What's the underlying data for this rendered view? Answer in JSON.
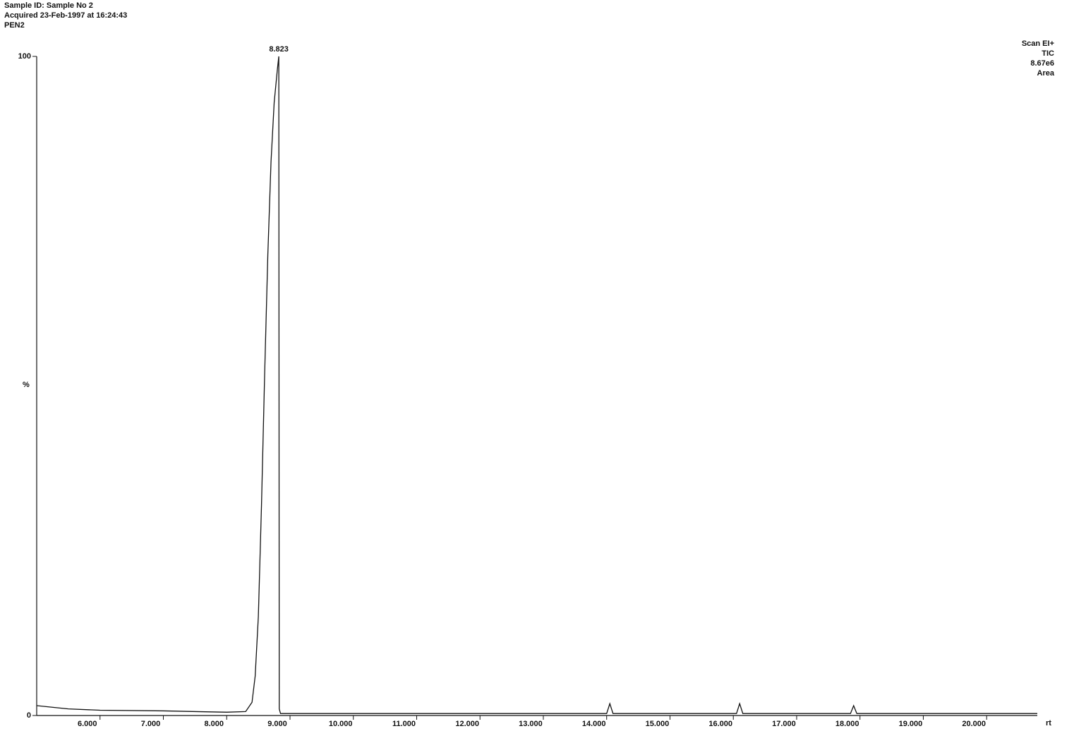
{
  "chart_data": {
    "type": "line",
    "title": "Sample ID: Sample No 2",
    "subtitle": [
      "Acquired 23-Feb-1997 at 16:24:43",
      "PEN2"
    ],
    "info": [
      "Scan EI+",
      "TIC",
      "8.67e6",
      "Area"
    ],
    "xlabel": "rt",
    "ylabel": "%",
    "color": "#111111",
    "x": [
      5.0,
      5.5,
      6.0,
      7.0,
      8.0,
      8.3,
      8.4,
      8.45,
      8.5,
      8.55,
      8.6,
      8.65,
      8.7,
      8.75,
      8.8,
      8.823,
      8.83,
      8.85,
      9.0,
      10,
      11,
      12,
      13,
      14.0,
      14.05,
      14.1,
      15,
      16.05,
      16.1,
      16.15,
      17,
      17.85,
      17.9,
      17.95,
      19,
      20,
      20.8
    ],
    "values": [
      1.5,
      1.0,
      0.8,
      0.7,
      0.5,
      0.6,
      2,
      6,
      15,
      32,
      52,
      70,
      84,
      93,
      98,
      100,
      1,
      0.3,
      0.3,
      0.3,
      0.3,
      0.3,
      0.3,
      0.3,
      1.8,
      0.3,
      0.3,
      0.3,
      1.8,
      0.3,
      0.3,
      0.3,
      1.5,
      0.3,
      0.3,
      0.3,
      0.3
    ],
    "annotations": [
      {
        "x": 8.823,
        "y": 100,
        "text": "8.823"
      }
    ],
    "xlim": [
      5.0,
      20.8
    ],
    "ylim": [
      0,
      100
    ],
    "xticks": [
      {
        "value": 6,
        "label": "6.000"
      },
      {
        "value": 7,
        "label": "7.000"
      },
      {
        "value": 8,
        "label": "8.000"
      },
      {
        "value": 9,
        "label": "9.000"
      },
      {
        "value": 10,
        "label": "10.000"
      },
      {
        "value": 11,
        "label": "11.000"
      },
      {
        "value": 12,
        "label": "12.000"
      },
      {
        "value": 13,
        "label": "13.000"
      },
      {
        "value": 14,
        "label": "14.000"
      },
      {
        "value": 15,
        "label": "15.000"
      },
      {
        "value": 16,
        "label": "16.000"
      },
      {
        "value": 17,
        "label": "17.000"
      },
      {
        "value": 18,
        "label": "18.000"
      },
      {
        "value": 19,
        "label": "19.000"
      },
      {
        "value": 20,
        "label": "20.000"
      }
    ],
    "yticks": [
      0,
      100
    ]
  }
}
